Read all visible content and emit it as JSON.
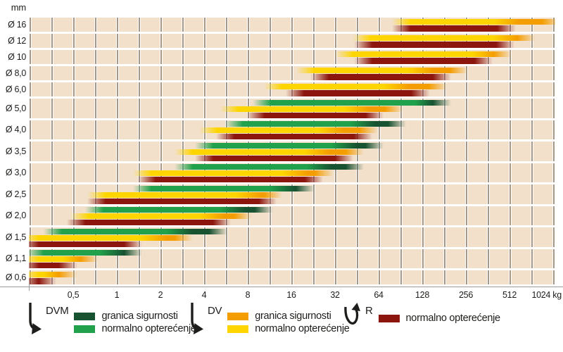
{
  "colors": {
    "dvm_normal": "#21a14b",
    "dvm_safety": "#175231",
    "dv_normal": "#ffd500",
    "dv_safety": "#f49d00",
    "r_normal": "#8c160e",
    "plot_cell": "#f2e0cb",
    "grid_line": "#a5988a",
    "axis_line": "#9a9a9a",
    "text": "#1d1d1b"
  },
  "chart_data": {
    "type": "bar",
    "subtype": "horizontal-range-bars",
    "x_axis": {
      "unit": "kg",
      "scale": "log2",
      "min": 0.25,
      "max": 1070,
      "ticks": [
        0.5,
        1,
        2,
        4,
        8,
        16,
        32,
        64,
        128,
        256,
        512,
        1024
      ],
      "tick_labels": [
        "0,5",
        "1",
        "2",
        "4",
        "8",
        "16",
        "32",
        "64",
        "128",
        "256",
        "512",
        "1024 kg"
      ]
    },
    "y_axis": {
      "unit": "mm",
      "categories": [
        "Ø 16",
        "Ø 12",
        "Ø 10",
        "Ø 8,0",
        "Ø 6,0",
        "Ø 5,0",
        "Ø 4,0",
        "Ø 3,5",
        "Ø 3,0",
        "Ø 2,5",
        "Ø 2,0",
        "Ø 1,5",
        "Ø 1,1",
        "Ø 0,6"
      ]
    },
    "rows": [
      {
        "dia": "Ø 16",
        "bars": [
          {
            "series": "DV",
            "from": 92,
            "normal": 490,
            "safety": 1000
          },
          {
            "series": "R",
            "from": 92,
            "normal": 490
          }
        ]
      },
      {
        "dia": "Ø 12",
        "bars": [
          {
            "series": "DV",
            "from": 49,
            "normal": 480,
            "safety": 670
          },
          {
            "series": "R",
            "from": 50,
            "normal": 480
          }
        ]
      },
      {
        "dia": "Ø 10",
        "bars": [
          {
            "series": "DV",
            "from": 37,
            "normal": 350,
            "safety": 460
          },
          {
            "series": "R",
            "from": 50,
            "normal": 340
          }
        ]
      },
      {
        "dia": "Ø 8,0",
        "bars": [
          {
            "series": "DV",
            "from": 20,
            "normal": 125,
            "safety": 230
          },
          {
            "series": "R",
            "from": 25,
            "normal": 175
          }
        ]
      },
      {
        "dia": "Ø 6,0",
        "bars": [
          {
            "series": "DV",
            "from": 12,
            "normal": 85,
            "safety": 165
          },
          {
            "series": "R",
            "from": 17,
            "normal": 125
          }
        ]
      },
      {
        "dia": "Ø 5,0",
        "bars": [
          {
            "series": "DVM",
            "from": 10,
            "normal": 140,
            "safety": 175
          },
          {
            "series": "DV",
            "from": 6,
            "normal": 45,
            "safety": 82
          },
          {
            "series": "R",
            "from": 9,
            "normal": 60
          }
        ]
      },
      {
        "dia": "Ø 4,0",
        "bars": [
          {
            "series": "DVM",
            "from": 6.4,
            "normal": 50,
            "safety": 86
          },
          {
            "series": "DV",
            "from": 4.3,
            "normal": 30,
            "safety": 55
          },
          {
            "series": "R",
            "from": 5.6,
            "normal": 50
          }
        ]
      },
      {
        "dia": "Ø 3,5",
        "bars": [
          {
            "series": "DVM",
            "from": 4,
            "normal": 37,
            "safety": 60
          },
          {
            "series": "DV",
            "from": 2.9,
            "normal": 24,
            "safety": 44
          },
          {
            "series": "R",
            "from": 4,
            "normal": 37
          }
        ]
      },
      {
        "dia": "Ø 3,0",
        "bars": [
          {
            "series": "DVM",
            "from": 2.9,
            "normal": 25,
            "safety": 44
          },
          {
            "series": "DV",
            "from": 1.5,
            "normal": 17,
            "safety": 27
          },
          {
            "series": "R",
            "from": 1.6,
            "normal": 23
          }
        ]
      },
      {
        "dia": "Ø 2,5",
        "bars": [
          {
            "series": "DVM",
            "from": 1.5,
            "normal": 14,
            "safety": 20
          },
          {
            "series": "DV",
            "from": 0.72,
            "normal": 8,
            "safety": 12
          },
          {
            "series": "R",
            "from": 0.72,
            "normal": 11
          }
        ]
      },
      {
        "dia": "Ø 2,0",
        "bars": [
          {
            "series": "DVM",
            "from": 0.7,
            "normal": 6.3,
            "safety": 10.4
          },
          {
            "series": "DV",
            "from": 0.55,
            "normal": 4.5,
            "safety": 7.4
          },
          {
            "series": "R",
            "from": 0.52,
            "normal": 5.3
          }
        ]
      },
      {
        "dia": "Ø 1,5",
        "bars": [
          {
            "series": "DVM",
            "from": 0.36,
            "normal": 2.7,
            "safety": 5
          },
          {
            "series": "DV",
            "from": 0.25,
            "normal": 1.8,
            "safety": 2.9
          },
          {
            "series": "R",
            "from": 0.25,
            "normal": 1.3
          }
        ]
      },
      {
        "dia": "Ø 1,1",
        "bars": [
          {
            "series": "DVM",
            "from": 0.27,
            "normal": 0.93,
            "safety": 1.3
          },
          {
            "series": "DV",
            "from": 0.25,
            "normal": 0.52,
            "safety": 0.65
          },
          {
            "series": "R",
            "from": 0.25,
            "normal": 0.46
          }
        ]
      },
      {
        "dia": "Ø 0,6",
        "bars": [
          {
            "series": "DV",
            "from": 0.25,
            "normal": 0.38,
            "safety": 0.46
          },
          {
            "series": "R",
            "from": 0.25,
            "normal": 0.33
          }
        ]
      }
    ]
  },
  "legend": {
    "groups": [
      {
        "id": "dvm",
        "label": "DVM",
        "icon": "drop-arrow-icon",
        "entries": [
          {
            "color_key": "dvm_safety",
            "label": "granica sigurnosti"
          },
          {
            "color_key": "dvm_normal",
            "label": "normalno opterećenje"
          }
        ]
      },
      {
        "id": "dv",
        "label": "DV",
        "icon": "drop-arrow-icon",
        "entries": [
          {
            "color_key": "dv_safety",
            "label": "granica sigurnosti"
          },
          {
            "color_key": "dv_normal",
            "label": "normalno opterećenje"
          }
        ]
      },
      {
        "id": "r",
        "label": "R",
        "icon": "hook-arrow-icon",
        "entries": [
          {
            "color_key": "r_normal",
            "label": "normalno opterećenje"
          }
        ]
      }
    ]
  }
}
